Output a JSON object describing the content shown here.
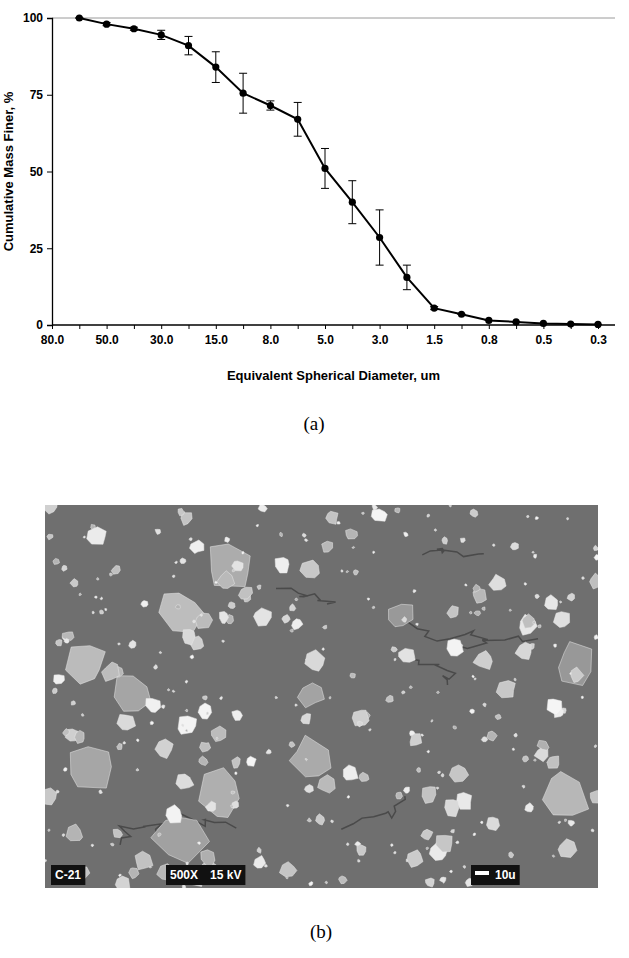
{
  "chart_data": {
    "type": "line",
    "panel_label": "(a)",
    "x_label": "Equivalent Spherical Diameter, um",
    "y_label": "Cumulative Mass Finer, %",
    "categories": [
      "80.0",
      null,
      "50.0",
      null,
      "30.0",
      null,
      "15.0",
      null,
      "8.0",
      null,
      "5.0",
      null,
      "3.0",
      null,
      "1.5",
      null,
      "0.8",
      null,
      "0.5",
      null,
      "0.3"
    ],
    "series": [
      {
        "color": "#000000",
        "marker": "circle",
        "line_style": "solid",
        "values": [
          null,
          100,
          98,
          96.5,
          94.5,
          91,
          84,
          75.5,
          71.5,
          67,
          51,
          40,
          28.5,
          15.5,
          5.5,
          3.5,
          1.5,
          1,
          0.5,
          0.3,
          0.2
        ],
        "errors": [
          null,
          0,
          0.5,
          0.5,
          1.5,
          3,
          5,
          6.5,
          1.5,
          5.5,
          6.5,
          7,
          9,
          4,
          0.5,
          0,
          0,
          0,
          0,
          0,
          0
        ]
      }
    ],
    "ylim": [
      0,
      100
    ],
    "yticks": [
      0,
      25,
      50,
      75,
      100
    ],
    "grid": false
  },
  "micrograph": {
    "panel_label": "(b)",
    "labels": [
      "C-21",
      "500X",
      "15 kV",
      "10u"
    ]
  }
}
